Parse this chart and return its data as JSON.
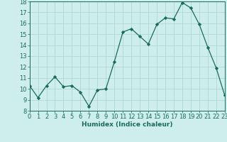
{
  "x": [
    0,
    1,
    2,
    3,
    4,
    5,
    6,
    7,
    8,
    9,
    10,
    11,
    12,
    13,
    14,
    15,
    16,
    17,
    18,
    19,
    20,
    21,
    22,
    23
  ],
  "y": [
    10.3,
    9.2,
    10.3,
    11.1,
    10.2,
    10.3,
    9.7,
    8.4,
    9.9,
    10.0,
    12.5,
    15.2,
    15.5,
    14.8,
    14.1,
    15.9,
    16.5,
    16.4,
    17.9,
    17.4,
    15.9,
    13.8,
    11.9,
    9.4
  ],
  "line_color": "#1a6b5a",
  "marker": "D",
  "marker_size": 2.2,
  "bg_color": "#ceeeed",
  "grid_color": "#b0d8d6",
  "xlabel": "Humidex (Indice chaleur)",
  "ylim": [
    8,
    18
  ],
  "xlim": [
    0,
    23
  ],
  "yticks": [
    8,
    9,
    10,
    11,
    12,
    13,
    14,
    15,
    16,
    17,
    18
  ],
  "xticks": [
    0,
    1,
    2,
    3,
    4,
    5,
    6,
    7,
    8,
    9,
    10,
    11,
    12,
    13,
    14,
    15,
    16,
    17,
    18,
    19,
    20,
    21,
    22,
    23
  ],
  "xlabel_fontsize": 6.5,
  "tick_fontsize": 6.0
}
